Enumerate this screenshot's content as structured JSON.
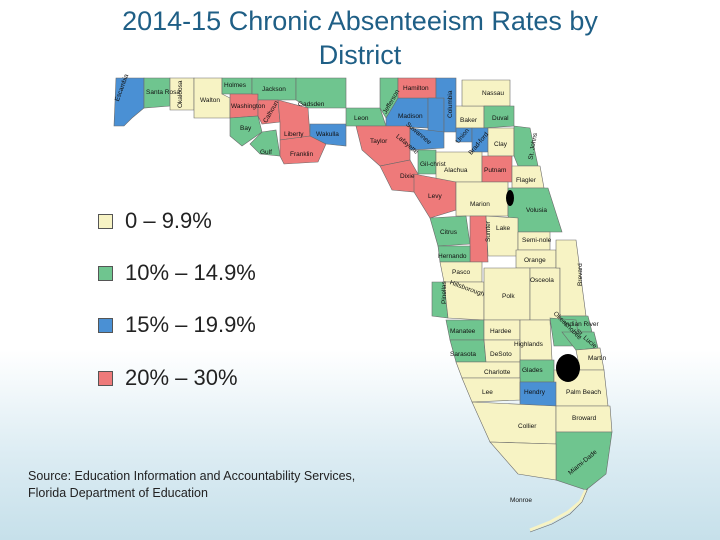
{
  "title_line1": "2014-15 Chronic Absenteeism Rates by",
  "title_line2": "District",
  "legend": [
    {
      "label": "0 – 9.9%",
      "color": "#f7f3c4"
    },
    {
      "label": "10% – 14.9%",
      "color": "#6fc58f"
    },
    {
      "label": "15% – 19.9%",
      "color": "#4a90d4"
    },
    {
      "label": "20% – 30%",
      "color": "#ee7a7a"
    }
  ],
  "source_line1": "Source: Education Information and Accountability Services,",
  "source_line2": "Florida Department of Education",
  "map": {
    "counties": [
      {
        "name": "Escambia",
        "category": 2
      },
      {
        "name": "Santa Rosa",
        "category": 1
      },
      {
        "name": "Okaloosa",
        "category": 0
      },
      {
        "name": "Walton",
        "category": 0
      },
      {
        "name": "Holmes",
        "category": 1
      },
      {
        "name": "Washington",
        "category": 3
      },
      {
        "name": "Jackson",
        "category": 1
      },
      {
        "name": "Bay",
        "category": 1
      },
      {
        "name": "Calhoun",
        "category": 3
      },
      {
        "name": "Gulf",
        "category": 1
      },
      {
        "name": "Liberty",
        "category": 3
      },
      {
        "name": "Gadsden",
        "category": 1
      },
      {
        "name": "Franklin",
        "category": 3
      },
      {
        "name": "Wakulla",
        "category": 2
      },
      {
        "name": "Leon",
        "category": 1
      },
      {
        "name": "Jefferson",
        "category": 1
      },
      {
        "name": "Madison",
        "category": 2
      },
      {
        "name": "Taylor",
        "category": 3
      },
      {
        "name": "Hamilton",
        "category": 3
      },
      {
        "name": "Suwannee",
        "category": 2
      },
      {
        "name": "Lafayette",
        "category": 2
      },
      {
        "name": "Columbia",
        "category": 2
      },
      {
        "name": "Baker",
        "category": 0
      },
      {
        "name": "Nassau",
        "category": 0
      },
      {
        "name": "Duval",
        "category": 1
      },
      {
        "name": "Union",
        "category": 2
      },
      {
        "name": "Bradford",
        "category": 2
      },
      {
        "name": "Clay",
        "category": 0
      },
      {
        "name": "St. Johns",
        "category": 1
      },
      {
        "name": "Gilchrist",
        "category": 1
      },
      {
        "name": "Alachua",
        "category": 0
      },
      {
        "name": "Putnam",
        "category": 3
      },
      {
        "name": "Flagler",
        "category": 0
      },
      {
        "name": "Dixie",
        "category": 3
      },
      {
        "name": "Levy",
        "category": 3
      },
      {
        "name": "Marion",
        "category": 0
      },
      {
        "name": "Volusia",
        "category": 1
      },
      {
        "name": "Citrus",
        "category": 1
      },
      {
        "name": "Sumter",
        "category": 3
      },
      {
        "name": "Lake",
        "category": 0
      },
      {
        "name": "Seminole",
        "category": 0
      },
      {
        "name": "Hernando",
        "category": 1
      },
      {
        "name": "Orange",
        "category": 0
      },
      {
        "name": "Pasco",
        "category": 0
      },
      {
        "name": "Pinellas",
        "category": 1
      },
      {
        "name": "Hillsborough",
        "category": 0
      },
      {
        "name": "Polk",
        "category": 0
      },
      {
        "name": "Osceola",
        "category": 0
      },
      {
        "name": "Brevard",
        "category": 0
      },
      {
        "name": "Indian River",
        "category": 1
      },
      {
        "name": "Manatee",
        "category": 1
      },
      {
        "name": "Hardee",
        "category": 0
      },
      {
        "name": "Highlands",
        "category": 0
      },
      {
        "name": "Okeechobee",
        "category": 1
      },
      {
        "name": "St. Lucie",
        "category": 1
      },
      {
        "name": "Martin",
        "category": 0
      },
      {
        "name": "Sarasota",
        "category": 1
      },
      {
        "name": "DeSoto",
        "category": 0
      },
      {
        "name": "Charlotte",
        "category": 0
      },
      {
        "name": "Glades",
        "category": 1
      },
      {
        "name": "Palm Beach",
        "category": 0
      },
      {
        "name": "Lee",
        "category": 0
      },
      {
        "name": "Hendry",
        "category": 2
      },
      {
        "name": "Collier",
        "category": 0
      },
      {
        "name": "Broward",
        "category": 0
      },
      {
        "name": "Miami-Dade",
        "category": 1
      },
      {
        "name": "Monroe",
        "category": 0
      }
    ],
    "labels": {
      "escambia": "Escambia",
      "santa_rosa": "Santa Rosa",
      "okaloosa": "Okaloosa",
      "walton": "Walton",
      "holmes": "Holmes",
      "washington": "Washington",
      "jackson": "Jackson",
      "bay": "Bay",
      "calhoun": "Calhoun",
      "gulf": "Gulf",
      "liberty": "Liberty",
      "gadsden": "Gadsden",
      "franklin": "Franklin",
      "wakulla": "Wakulla",
      "leon": "Leon",
      "jefferson": "Jefferson",
      "madison": "Madison",
      "taylor": "Taylor",
      "hamilton": "Hamilton",
      "suwannee": "Suwannee",
      "lafayette": "Lafayette",
      "columbia": "Columbia",
      "baker": "Baker",
      "nassau": "Nassau",
      "duval": "Duval",
      "union": "Union",
      "bradford": "Brad-ford",
      "clay": "Clay",
      "st_johns": "St. Johns",
      "gilchrist": "Gil-christ",
      "alachua": "Alachua",
      "putnam": "Putnam",
      "flagler": "Flagler",
      "dixie": "Dixie",
      "levy": "Levy",
      "marion": "Marion",
      "volusia": "Volusia",
      "citrus": "Citrus",
      "sumter": "Sumter",
      "lake": "Lake",
      "seminole": "Semi-nole",
      "hernando": "Hernando",
      "orange": "Orange",
      "pasco": "Pasco",
      "pinellas": "Pinellas",
      "hillsborough": "Hillsborough",
      "polk": "Polk",
      "osceola": "Osceola",
      "brevard": "Brevard",
      "indian_river": "Indian River",
      "manatee": "Manatee",
      "hardee": "Hardee",
      "highlands": "Highlands",
      "okeechobee": "Okeechobee",
      "st_lucie": "St. Lucie",
      "martin": "Martin",
      "sarasota": "Sarasota",
      "desoto": "DeSoto",
      "charlotte": "Charlotte",
      "glades": "Glades",
      "palm_beach": "Palm Beach",
      "lee": "Lee",
      "hendry": "Hendry",
      "collier": "Collier",
      "broward": "Broward",
      "miami_dade": "Miami-Dade",
      "monroe": "Monroe"
    }
  }
}
